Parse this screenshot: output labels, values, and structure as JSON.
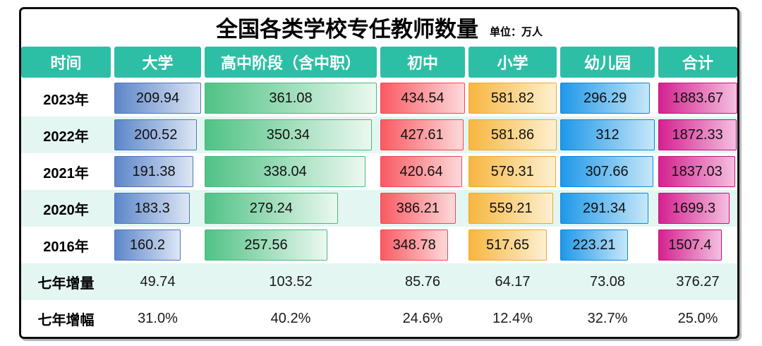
{
  "title": "全国各类学校专任教师数量",
  "unit_label": "单位：万人",
  "chart_data": {
    "type": "table",
    "title": "全国各类学校专任教师数量",
    "unit": "万人",
    "columns": [
      "时间",
      "大学",
      "高中阶段（含中职）",
      "初中",
      "小学",
      "幼儿园",
      "合计"
    ],
    "bar_rows": 5,
    "rows": [
      {
        "label": "2023年",
        "values": [
          "209.94",
          "361.08",
          "434.54",
          "581.82",
          "296.29",
          "1883.67"
        ]
      },
      {
        "label": "2022年",
        "values": [
          "200.52",
          "350.34",
          "427.61",
          "581.86",
          "312",
          "1872.33"
        ]
      },
      {
        "label": "2021年",
        "values": [
          "191.38",
          "338.04",
          "420.64",
          "579.31",
          "307.66",
          "1837.03"
        ]
      },
      {
        "label": "2020年",
        "values": [
          "183.3",
          "279.24",
          "386.21",
          "559.21",
          "291.34",
          "1699.3"
        ]
      },
      {
        "label": "2016年",
        "values": [
          "160.2",
          "257.56",
          "348.78",
          "517.65",
          "223.21",
          "1507.4"
        ]
      },
      {
        "label": "七年增量",
        "values": [
          "49.74",
          "103.52",
          "85.76",
          "64.17",
          "73.08",
          "376.27"
        ]
      },
      {
        "label": "七年增幅",
        "values": [
          "31.0%",
          "40.2%",
          "24.6%",
          "12.4%",
          "32.7%",
          "25.0%"
        ]
      }
    ]
  },
  "colors": {
    "header_bg": "#2cbfa6",
    "row_alt_bg": "#e3f6f2",
    "frame_border": "#0d0d0d",
    "bars": [
      {
        "name": "大学",
        "from": "#5c86c9",
        "to": "#dde6f5",
        "border": "#4f76ba"
      },
      {
        "name": "高中阶段",
        "from": "#50c285",
        "to": "#ecf8ef",
        "border": "#47ba7c"
      },
      {
        "name": "初中",
        "from": "#f95a62",
        "to": "#fcd9da",
        "border": "#f6444f"
      },
      {
        "name": "小学",
        "from": "#f7b640",
        "to": "#fdf0d0",
        "border": "#f2a72e"
      },
      {
        "name": "幼儿园",
        "from": "#1f98e8",
        "to": "#c6e7f9",
        "border": "#0e86d6"
      },
      {
        "name": "合计",
        "from": "#d4218f",
        "to": "#f4bfe0",
        "border": "#c3127f"
      }
    ]
  }
}
